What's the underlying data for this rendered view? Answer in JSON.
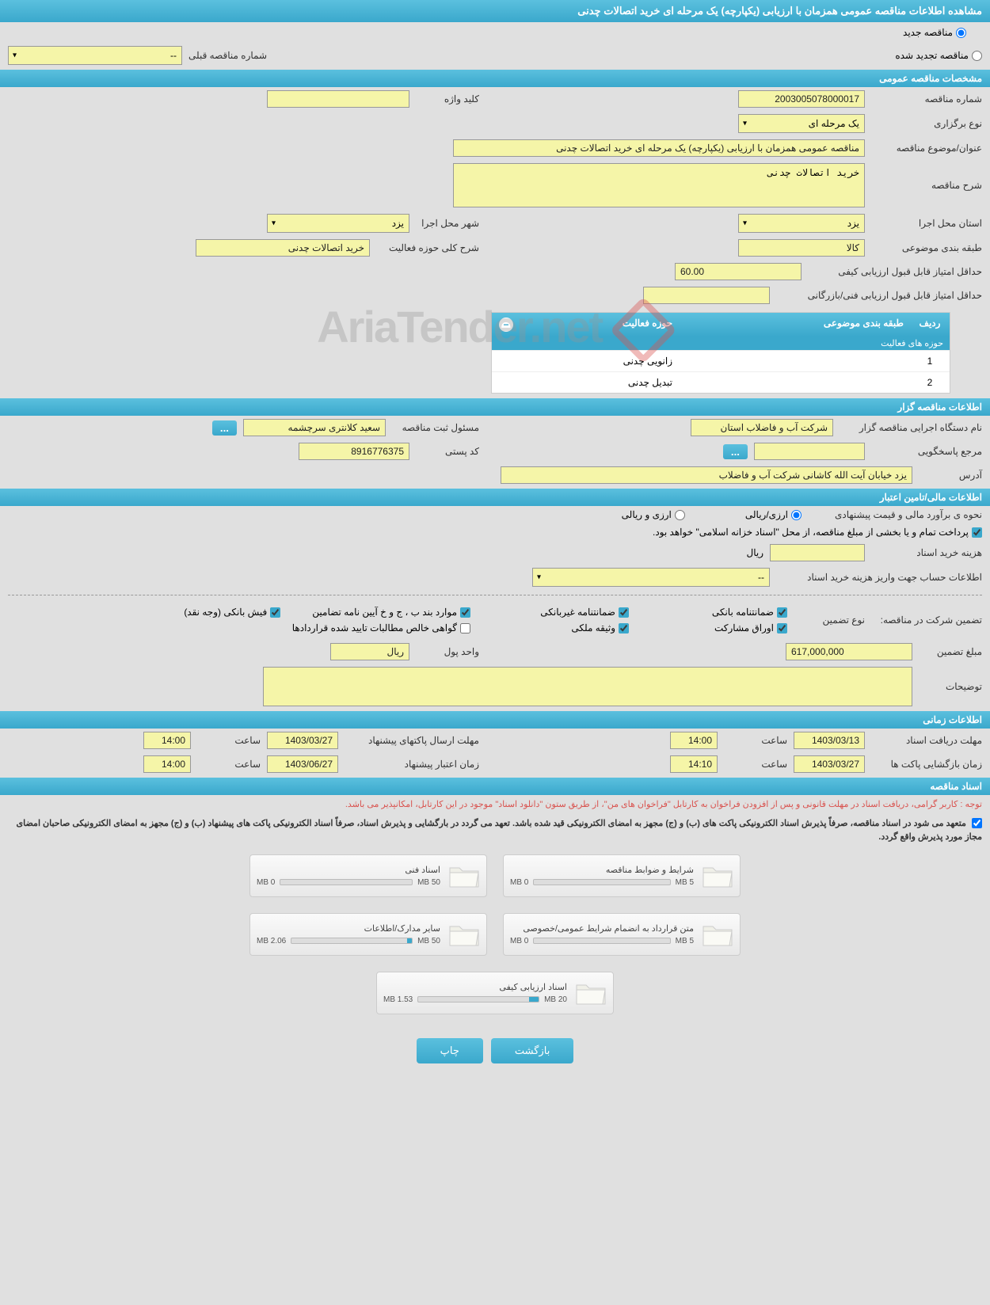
{
  "page_title": "مشاهده اطلاعات مناقصه عمومی همزمان با ارزیابی (یکپارچه) یک مرحله ای خرید اتصالات چدنی",
  "tender_status": {
    "new_label": "مناقصه جدید",
    "renewed_label": "مناقصه تجدید شده",
    "prev_number_label": "شماره مناقصه قبلی",
    "prev_number_value": "--"
  },
  "sections": {
    "general": "مشخصات مناقصه عمومی",
    "organizer": "اطلاعات مناقصه گزار",
    "financial": "اطلاعات مالی/تامین اعتبار",
    "timing": "اطلاعات زمانی",
    "documents": "اسناد مناقصه"
  },
  "general": {
    "tender_no_label": "شماره مناقصه",
    "tender_no": "2003005078000017",
    "keyword_label": "کلید واژه",
    "keyword": "",
    "type_label": "نوع برگزاری",
    "type": "یک مرحله ای",
    "subject_label": "عنوان/موضوع مناقصه",
    "subject": "مناقصه عمومی همزمان با ارزیابی (یکپارچه) یک مرحله ای خرید اتصالات چدنی",
    "desc_label": "شرح مناقصه",
    "desc": "خرید اتصالات چدنی",
    "province_label": "استان محل اجرا",
    "province": "یزد",
    "city_label": "شهر محل اجرا",
    "city": "یزد",
    "category_label": "طبقه بندی موضوعی",
    "category": "کالا",
    "activity_desc_label": "شرح کلی حوزه فعالیت",
    "activity_desc": "خرید اتصالات چدنی",
    "min_quality_label": "حداقل امتیاز قابل قبول ارزیابی کیفی",
    "min_quality": "60.00",
    "min_tech_label": "حداقل امتیاز قابل قبول ارزیابی فنی/بازرگانی",
    "min_tech": ""
  },
  "activity_table": {
    "title": "حوزه های فعالیت",
    "col_row": "ردیف",
    "col_category": "طبقه بندی موضوعی",
    "col_activity": "حوزه فعالیت",
    "rows": [
      {
        "n": "1",
        "cat": "",
        "act": "زانویی چدنی"
      },
      {
        "n": "2",
        "cat": "",
        "act": "تبدیل چدنی"
      }
    ]
  },
  "organizer": {
    "org_label": "نام دستگاه اجرایی مناقصه گزار",
    "org": "شرکت آب و فاضلاب استان",
    "reg_person_label": "مسئول ثبت مناقصه",
    "reg_person": "سعید کلانتری سرچشمه",
    "inquiry_label": "مرجع پاسخگویی",
    "inquiry": "",
    "postal_label": "کد پستی",
    "postal": "8916776375",
    "address_label": "آدرس",
    "address": "یزد خیابان آیت الله کاشانی شرکت آب و فاضلاب"
  },
  "financial": {
    "estimate_label": "نحوه ی برآورد مالی و قیمت پیشنهادی",
    "currency_rial": "ارزی/ریالی",
    "currency_foreign": "ارزی و ریالی",
    "treasury_note": "پرداخت تمام و یا بخشی از مبلغ مناقصه، از محل \"اسناد خزانه اسلامی\" خواهد بود.",
    "doc_fee_label": "هزینه خرید اسناد",
    "doc_fee_unit": "ریال",
    "account_info_label": "اطلاعات حساب جهت واریز هزینه خرید اسناد",
    "account_info": "--",
    "guarantee_label": "تضمین شرکت در مناقصه:",
    "guarantee_type_label": "نوع تضمین",
    "guarantees": {
      "bank_guarantee": "ضمانتنامه بانکی",
      "nonbank_guarantee": "ضمانتنامه غیربانکی",
      "items_bjw": "موارد بند ب ، ج و خ آیین نامه تضامین",
      "bank_receipt": "فیش بانکی (وجه نقد)",
      "securities": "اوراق مشارکت",
      "property_deed": "وثیقه ملکی",
      "net_claims": "گواهی خالص مطالبات تایید شده قراردادها"
    },
    "amount_label": "مبلغ تضمین",
    "amount": "617,000,000",
    "unit_label": "واحد پول",
    "unit": "ریال",
    "notes_label": "توضیحات",
    "notes": ""
  },
  "timing": {
    "receive_label": "مهلت دریافت اسناد",
    "receive_date": "1403/03/13",
    "receive_time_label": "ساعت",
    "receive_time": "14:00",
    "send_label": "مهلت ارسال پاکتهای پیشنهاد",
    "send_date": "1403/03/27",
    "send_time_label": "ساعت",
    "send_time": "14:00",
    "open_label": "زمان بازگشایی پاکت ها",
    "open_date": "1403/03/27",
    "open_time_label": "ساعت",
    "open_time": "14:10",
    "validity_label": "زمان اعتبار پیشنهاد",
    "validity_date": "1403/06/27",
    "validity_time_label": "ساعت",
    "validity_time": "14:00"
  },
  "documents": {
    "notice1": "توجه : کاربر گرامی، دریافت اسناد در مهلت قانونی و پس از افزودن فراخوان به کارتابل \"فراخوان های من\"، از طریق ستون \"دانلود اسناد\" موجود در این کارتابل، امکانپذیر می باشد.",
    "notice2": "متعهد می شود در اسناد مناقصه، صرفاً پذیرش اسناد الکترونیکی پاکت های (ب) و (ج) مجهز به امضای الکترونیکی قید شده باشد. تعهد می گردد در بارگشایی و پذیرش اسناد، صرفاً اسناد الکترونیکی پاکت های پیشنهاد (ب) و (ج) مجهز به امضای الکترونیکی صاحبان امضای مجاز مورد پذیرش واقع گردد.",
    "cards": [
      {
        "title": "شرایط و ضوابط مناقصه",
        "used": "0 MB",
        "total": "5 MB",
        "pct": 0
      },
      {
        "title": "اسناد فنی",
        "used": "0 MB",
        "total": "50 MB",
        "pct": 0
      },
      {
        "title": "متن قرارداد به انضمام شرایط عمومی/خصوصی",
        "used": "0 MB",
        "total": "5 MB",
        "pct": 0
      },
      {
        "title": "سایر مدارک/اطلاعات",
        "used": "2.06 MB",
        "total": "50 MB",
        "pct": 4
      },
      {
        "title": "اسناد ارزیابی کیفی",
        "used": "1.53 MB",
        "total": "20 MB",
        "pct": 8
      }
    ]
  },
  "buttons": {
    "back": "بازگشت",
    "print": "چاپ"
  },
  "watermark": "AriaTender.net",
  "colors": {
    "header_bg": "#3aa8cc",
    "field_bg": "#f5f5a8",
    "page_bg": "#e0e0e0",
    "notice_red": "#d9534f"
  }
}
